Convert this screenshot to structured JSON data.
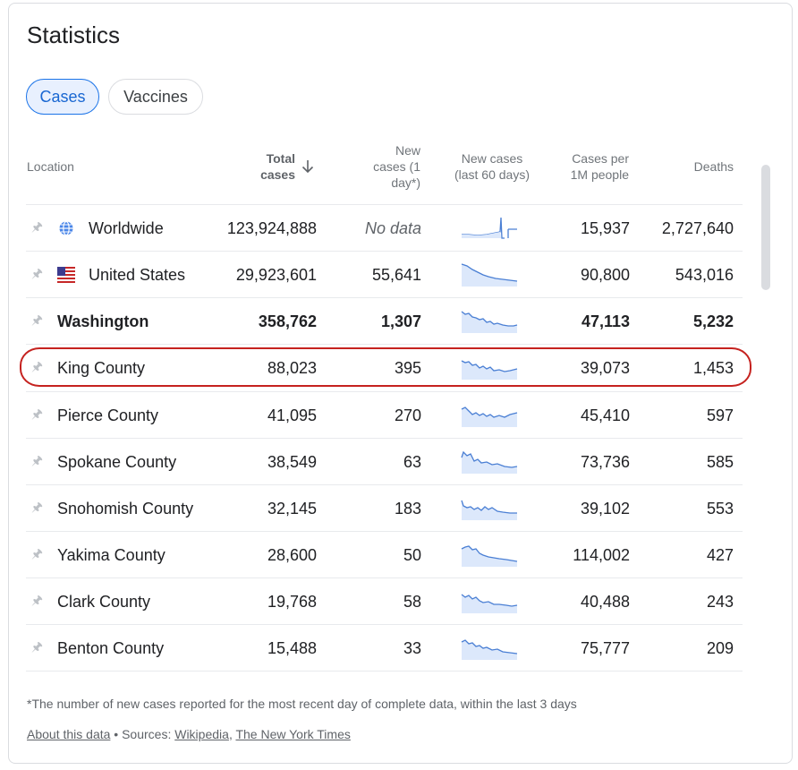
{
  "title": "Statistics",
  "tabs": {
    "cases": "Cases",
    "vaccines": "Vaccines"
  },
  "headers": {
    "location": "Location",
    "total_cases_1": "Total",
    "total_cases_2": "cases",
    "new_cases_1": "New",
    "new_cases_2": "cases (1",
    "new_cases_3": "day*)",
    "new_60_1": "New cases",
    "new_60_2": "(last 60 days)",
    "per1m_1": "Cases per",
    "per1m_2": "1M people",
    "deaths": "Deaths",
    "sort_icon": "arrow-down-icon"
  },
  "rows": [
    {
      "name": "Worldwide",
      "total": "123,924,888",
      "new": "No data",
      "per1m": "15,937",
      "deaths": "2,727,640",
      "icon": "globe-icon"
    },
    {
      "name": "United States",
      "total": "29,923,601",
      "new": "55,641",
      "per1m": "90,800",
      "deaths": "543,016",
      "icon": "us-flag-icon"
    },
    {
      "name": "Washington",
      "total": "358,762",
      "new": "1,307",
      "per1m": "47,113",
      "deaths": "5,232"
    },
    {
      "name": "King County",
      "total": "88,023",
      "new": "395",
      "per1m": "39,073",
      "deaths": "1,453"
    },
    {
      "name": "Pierce County",
      "total": "41,095",
      "new": "270",
      "per1m": "45,410",
      "deaths": "597"
    },
    {
      "name": "Spokane County",
      "total": "38,549",
      "new": "63",
      "per1m": "73,736",
      "deaths": "585"
    },
    {
      "name": "Snohomish County",
      "total": "32,145",
      "new": "183",
      "per1m": "39,102",
      "deaths": "553"
    },
    {
      "name": "Yakima County",
      "total": "28,600",
      "new": "50",
      "per1m": "114,002",
      "deaths": "427"
    },
    {
      "name": "Clark County",
      "total": "19,768",
      "new": "58",
      "per1m": "40,488",
      "deaths": "243"
    },
    {
      "name": "Benton County",
      "total": "15,488",
      "new": "33",
      "per1m": "75,777",
      "deaths": "209"
    }
  ],
  "footnote": "*The number of new cases reported for the most recent day of complete data, within the last 3 days",
  "footer": {
    "about": "About this data",
    "sources_prefix": " • Sources: ",
    "wikipedia": "Wikipedia",
    "separator": ", ",
    "nyt": "The New York Times"
  },
  "colors": {
    "accent": "#1a73e8",
    "spark_line": "#4a7fd4",
    "spark_fill": "#dce8fb",
    "highlight": "#c5221f"
  }
}
